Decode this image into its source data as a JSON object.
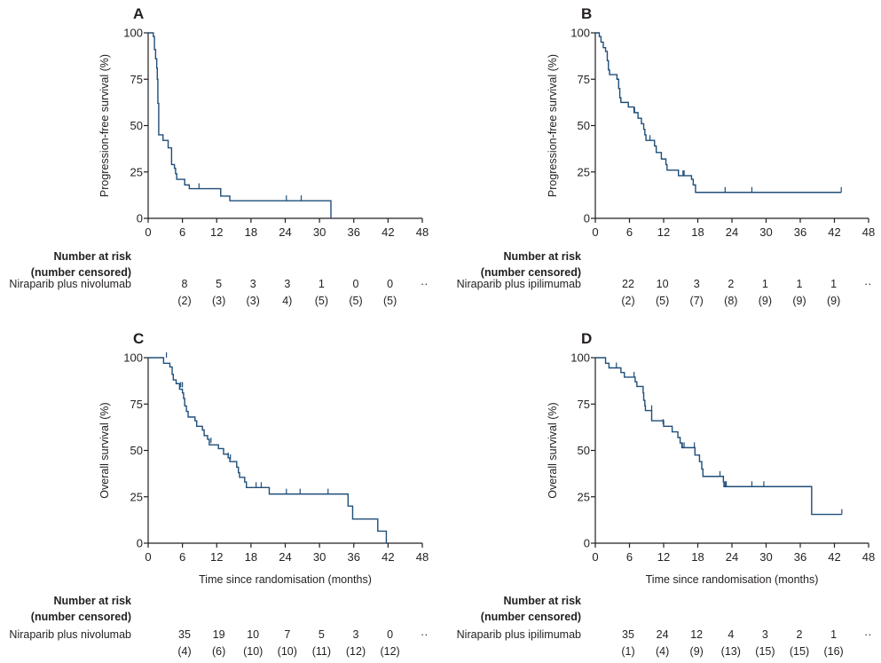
{
  "chart_data": [
    {
      "type": "line",
      "panel": "A",
      "title": "A",
      "xlabel": "",
      "ylabel": "Progression-free survival (%)",
      "xlim": [
        0,
        48
      ],
      "ylim": [
        0,
        100
      ],
      "x_ticks": [
        "0",
        "6",
        "12",
        "18",
        "24",
        "30",
        "36",
        "42",
        "48"
      ],
      "y_ticks": [
        "0",
        "25",
        "50",
        "75",
        "100"
      ],
      "series": [
        {
          "name": "Niraparib plus nivolumab",
          "color": "#1f4e79",
          "steps": [
            [
              0,
              100
            ],
            [
              0.6,
              100
            ],
            [
              0.9,
              98
            ],
            [
              1.1,
              91
            ],
            [
              1.3,
              86
            ],
            [
              1.5,
              81
            ],
            [
              1.6,
              75
            ],
            [
              1.7,
              62
            ],
            [
              1.85,
              45
            ],
            [
              2.6,
              42
            ],
            [
              3.5,
              38
            ],
            [
              4.1,
              29
            ],
            [
              4.6,
              27
            ],
            [
              4.8,
              24
            ],
            [
              5.0,
              21
            ],
            [
              6.4,
              18
            ],
            [
              7.2,
              16
            ],
            [
              12.7,
              12
            ],
            [
              14.3,
              9.5
            ],
            [
              32.0,
              9.5
            ],
            [
              32.0,
              0
            ]
          ],
          "censored": [
            [
              8.9,
              16
            ],
            [
              24.2,
              9.5
            ],
            [
              26.8,
              9.5
            ]
          ]
        }
      ],
      "risk_table": {
        "heading": [
          "Number at risk",
          "(number censored)"
        ],
        "row_label": "Niraparib plus nivolumab",
        "at_risk": [
          "8",
          "5",
          "3",
          "3",
          "1",
          "0",
          "0",
          "··"
        ],
        "censored": [
          "(2)",
          "(3)",
          "(3)",
          "4)",
          "(5)",
          "(5)",
          "(5)",
          ""
        ]
      }
    },
    {
      "type": "line",
      "panel": "B",
      "title": "B",
      "xlabel": "",
      "ylabel": "Progression-free survival (%)",
      "xlim": [
        0,
        48
      ],
      "ylim": [
        0,
        100
      ],
      "x_ticks": [
        "0",
        "6",
        "12",
        "18",
        "24",
        "30",
        "36",
        "42",
        "48"
      ],
      "y_ticks": [
        "0",
        "25",
        "50",
        "75",
        "100"
      ],
      "series": [
        {
          "name": "Niraparib plus ipilimumab",
          "color": "#1f4e79",
          "steps": [
            [
              0,
              100
            ],
            [
              0.6,
              100
            ],
            [
              0.7,
              98
            ],
            [
              1.0,
              95
            ],
            [
              1.4,
              92
            ],
            [
              1.8,
              90
            ],
            [
              2.1,
              85
            ],
            [
              2.3,
              80
            ],
            [
              2.5,
              77.5
            ],
            [
              3.8,
              75
            ],
            [
              4.1,
              70
            ],
            [
              4.3,
              65
            ],
            [
              4.5,
              62.5
            ],
            [
              5.8,
              60
            ],
            [
              6.8,
              57
            ],
            [
              7.5,
              54
            ],
            [
              8.1,
              51
            ],
            [
              8.5,
              48
            ],
            [
              8.7,
              45
            ],
            [
              8.9,
              42
            ],
            [
              10.4,
              39
            ],
            [
              10.7,
              35.5
            ],
            [
              11.6,
              32
            ],
            [
              12.4,
              29
            ],
            [
              12.6,
              26
            ],
            [
              14.6,
              23
            ],
            [
              16.9,
              21
            ],
            [
              17.2,
              18
            ],
            [
              17.6,
              14
            ],
            [
              43.2,
              14
            ]
          ],
          "censored": [
            [
              4.5,
              62.5
            ],
            [
              6.9,
              57
            ],
            [
              9.6,
              42
            ],
            [
              15.4,
              23
            ],
            [
              15.6,
              23
            ],
            [
              22.8,
              14
            ],
            [
              27.5,
              14
            ],
            [
              43.2,
              14
            ]
          ]
        }
      ],
      "risk_table": {
        "heading": [
          "Number at risk",
          "(number censored)"
        ],
        "row_label": "Niraparib plus ipilimumab",
        "at_risk": [
          "22",
          "10",
          "3",
          "2",
          "1",
          "1",
          "1",
          "··"
        ],
        "censored": [
          "(2)",
          "(5)",
          "(7)",
          "(8)",
          "(9)",
          "(9)",
          "(9)",
          ""
        ]
      }
    },
    {
      "type": "line",
      "panel": "C",
      "title": "C",
      "xlabel": "Time since randomisation (months)",
      "ylabel": "Overall survival (%)",
      "xlim": [
        0,
        48
      ],
      "ylim": [
        0,
        100
      ],
      "x_ticks": [
        "0",
        "6",
        "12",
        "18",
        "24",
        "30",
        "36",
        "42",
        "48"
      ],
      "y_ticks": [
        "0",
        "25",
        "50",
        "75",
        "100"
      ],
      "series": [
        {
          "name": "Niraparib plus nivolumab",
          "color": "#1f4e79",
          "steps": [
            [
              0,
              100
            ],
            [
              2.6,
              100
            ],
            [
              2.7,
              97
            ],
            [
              3.6,
              97
            ],
            [
              3.8,
              95
            ],
            [
              4.2,
              91
            ],
            [
              4.4,
              88
            ],
            [
              4.9,
              86
            ],
            [
              5.5,
              83
            ],
            [
              6.0,
              81
            ],
            [
              6.2,
              78
            ],
            [
              6.4,
              74
            ],
            [
              6.7,
              71
            ],
            [
              7.0,
              68
            ],
            [
              8.2,
              66
            ],
            [
              8.5,
              63
            ],
            [
              9.5,
              61
            ],
            [
              9.8,
              58
            ],
            [
              10.4,
              56
            ],
            [
              10.7,
              53
            ],
            [
              11.5,
              53
            ],
            [
              12.3,
              51
            ],
            [
              13.2,
              48
            ],
            [
              14.0,
              46
            ],
            [
              14.3,
              44
            ],
            [
              15.5,
              41
            ],
            [
              15.8,
              38
            ],
            [
              16.0,
              35.5
            ],
            [
              16.9,
              33
            ],
            [
              17.2,
              30
            ],
            [
              21.2,
              30
            ],
            [
              21.2,
              26.5
            ],
            [
              35.0,
              26.5
            ],
            [
              35.0,
              20
            ],
            [
              35.8,
              20
            ],
            [
              35.8,
              13
            ],
            [
              40.2,
              13
            ],
            [
              40.2,
              6.5
            ],
            [
              41.7,
              6.5
            ],
            [
              41.7,
              0
            ]
          ],
          "censored": [
            [
              3.2,
              100
            ],
            [
              5.7,
              84
            ],
            [
              6.0,
              84
            ],
            [
              11.0,
              54
            ],
            [
              14.0,
              46
            ],
            [
              14.4,
              45
            ],
            [
              18.9,
              30
            ],
            [
              19.8,
              30
            ],
            [
              24.2,
              26.5
            ],
            [
              26.6,
              26.5
            ],
            [
              31.5,
              26.5
            ]
          ]
        }
      ],
      "risk_table": {
        "heading": [
          "Number at risk",
          "(number censored)"
        ],
        "row_label": "Niraparib plus nivolumab",
        "at_risk": [
          "35",
          "19",
          "10",
          "7",
          "5",
          "3",
          "0",
          "··"
        ],
        "censored": [
          "(4)",
          "(6)",
          "(10)",
          "(10)",
          "(11)",
          "(12)",
          "(12)",
          ""
        ]
      }
    },
    {
      "type": "line",
      "panel": "D",
      "title": "D",
      "xlabel": "Time since randomisation (months)",
      "ylabel": "Overall survival (%)",
      "xlim": [
        0,
        48
      ],
      "ylim": [
        0,
        100
      ],
      "x_ticks": [
        "0",
        "6",
        "12",
        "18",
        "24",
        "30",
        "36",
        "42",
        "48"
      ],
      "y_ticks": [
        "0",
        "25",
        "50",
        "75",
        "100"
      ],
      "series": [
        {
          "name": "Niraparib plus ipilimumab",
          "color": "#1f4e79",
          "steps": [
            [
              0,
              100
            ],
            [
              1.7,
              100
            ],
            [
              1.8,
              97
            ],
            [
              2.4,
              94.5
            ],
            [
              4.4,
              94.5
            ],
            [
              4.5,
              92
            ],
            [
              5.1,
              89.5
            ],
            [
              6.8,
              89.5
            ],
            [
              7.0,
              87
            ],
            [
              7.3,
              84.5
            ],
            [
              8.3,
              84.5
            ],
            [
              8.4,
              81
            ],
            [
              8.5,
              77
            ],
            [
              8.7,
              74
            ],
            [
              8.8,
              71.5
            ],
            [
              9.8,
              71.5
            ],
            [
              9.9,
              66
            ],
            [
              11.8,
              66
            ],
            [
              12.0,
              63
            ],
            [
              13.5,
              60
            ],
            [
              14.5,
              57
            ],
            [
              14.9,
              54
            ],
            [
              15.2,
              51.5
            ],
            [
              17.4,
              51.5
            ],
            [
              17.5,
              47.5
            ],
            [
              18.3,
              44
            ],
            [
              18.7,
              40
            ],
            [
              18.9,
              36
            ],
            [
              22.3,
              36
            ],
            [
              22.5,
              33
            ],
            [
              22.6,
              30.5
            ],
            [
              38.0,
              30.5
            ],
            [
              38.0,
              15.5
            ],
            [
              43.3,
              15.5
            ]
          ],
          "censored": [
            [
              3.7,
              94.5
            ],
            [
              6.8,
              89.5
            ],
            [
              9.9,
              71.5
            ],
            [
              11.9,
              64
            ],
            [
              15.3,
              51.5
            ],
            [
              15.6,
              51.5
            ],
            [
              17.4,
              51.5
            ],
            [
              21.9,
              36
            ],
            [
              22.8,
              30.5
            ],
            [
              23.0,
              30.5
            ],
            [
              27.5,
              30.5
            ],
            [
              29.6,
              30.5
            ],
            [
              43.3,
              15.5
            ]
          ]
        }
      ],
      "risk_table": {
        "heading": [
          "Number at risk",
          "(number censored)"
        ],
        "row_label": "Niraparib plus ipilimumab",
        "at_risk": [
          "35",
          "24",
          "12",
          "4",
          "3",
          "2",
          "1",
          "··"
        ],
        "censored": [
          "(1)",
          "(4)",
          "(9)",
          "(13)",
          "(15)",
          "(15)",
          "(16)",
          ""
        ]
      }
    }
  ]
}
